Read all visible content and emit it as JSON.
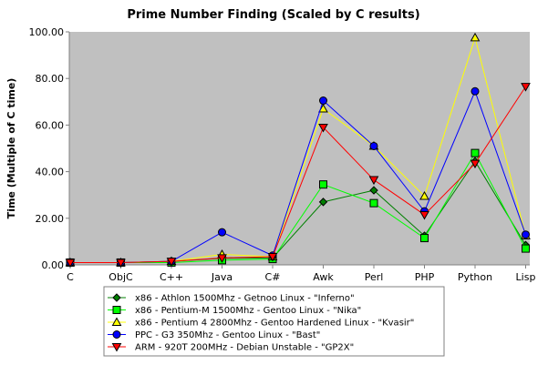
{
  "chart_data": {
    "type": "line",
    "title": "Prime Number Finding (Scaled by C results)",
    "xlabel": "",
    "ylabel": "Time (Multiple of C time)",
    "categories": [
      "C",
      "ObjC",
      "C++",
      "Java",
      "C#",
      "Awk",
      "Perl",
      "PHP",
      "Python",
      "Lisp"
    ],
    "ylim": [
      0,
      100
    ],
    "yticks": [
      "0.00",
      "20.00",
      "40.00",
      "60.00",
      "80.00",
      "100.00"
    ],
    "ytick_values": [
      0,
      20,
      40,
      60,
      80,
      100
    ],
    "grid": false,
    "plot_background": "#c0c0c0",
    "legend_placement": "bottom",
    "series": [
      {
        "name": "x86 - Athlon 1500Mhz - Getnoo Linux - \"Inferno\"",
        "color": "#008000",
        "marker": "diamond",
        "values": [
          1.0,
          1.0,
          1.5,
          2.8,
          3.0,
          27.0,
          32.0,
          12.5,
          44.5,
          8.5
        ]
      },
      {
        "name": "x86 - Pentium-M 1500Mhz - Gentoo Linux - \"Nika\"",
        "color": "#00ff00",
        "marker": "square",
        "values": [
          1.0,
          1.0,
          1.0,
          2.0,
          2.5,
          34.5,
          26.5,
          11.5,
          48.0,
          7.0
        ]
      },
      {
        "name": "x86 - Pentium 4 2800Mhz - Gentoo Hardened Linux - \"Kvasir\"",
        "color": "#ffff00",
        "marker": "triangle-up",
        "values": [
          1.0,
          1.0,
          1.5,
          4.5,
          3.5,
          67.0,
          51.0,
          29.5,
          97.5,
          12.5
        ]
      },
      {
        "name": "PPC - G3 350Mhz - Gentoo Linux - \"Bast\"",
        "color": "#0000ff",
        "marker": "circle",
        "values": [
          1.0,
          1.0,
          1.5,
          14.0,
          4.0,
          70.5,
          51.0,
          23.0,
          74.5,
          13.0
        ]
      },
      {
        "name": "ARM - 920T 200MHz - Debian Unstable - \"GP2X\"",
        "color": "#ff0000",
        "marker": "triangle-down",
        "values": [
          1.0,
          1.0,
          1.5,
          3.0,
          3.5,
          59.0,
          36.5,
          21.5,
          43.5,
          76.5
        ]
      }
    ]
  }
}
